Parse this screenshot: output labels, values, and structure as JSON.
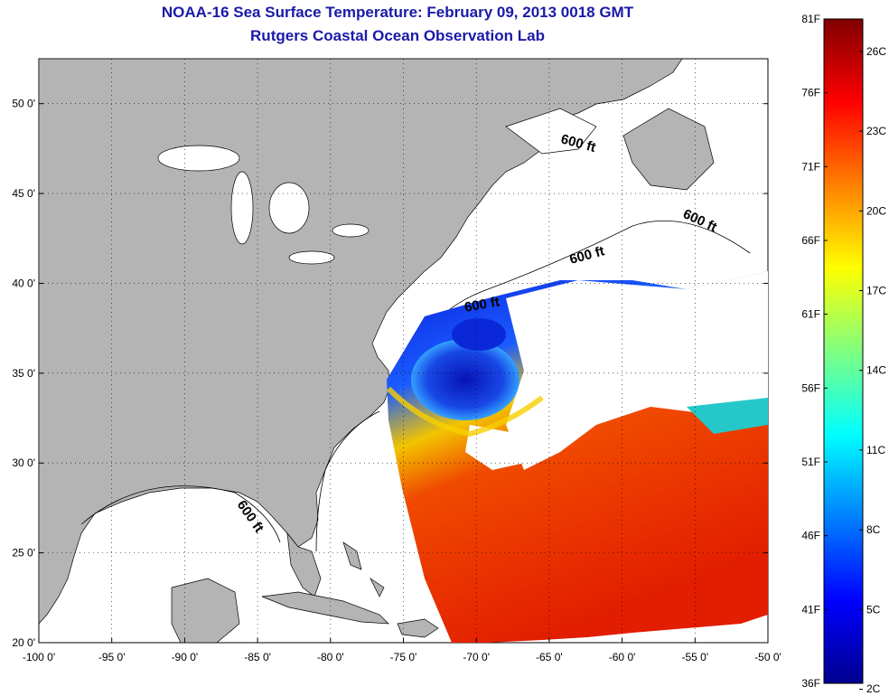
{
  "header": {
    "title": "NOAA-16 Sea Surface Temperature:  February 09, 2013 0018 GMT",
    "subtitle": "Rutgers Coastal Ocean Observation Lab"
  },
  "map": {
    "lon_range": [
      -100,
      -50
    ],
    "lat_range": [
      20,
      52.5
    ],
    "lon_ticks": [
      {
        "value": -100,
        "label": "-100 0'"
      },
      {
        "value": -95,
        "label": "-95 0'"
      },
      {
        "value": -90,
        "label": "-90 0'"
      },
      {
        "value": -85,
        "label": "-85 0'"
      },
      {
        "value": -80,
        "label": "-80 0'"
      },
      {
        "value": -75,
        "label": "-75 0'"
      },
      {
        "value": -70,
        "label": "-70 0'"
      },
      {
        "value": -65,
        "label": "-65 0'"
      },
      {
        "value": -60,
        "label": "-60 0'"
      },
      {
        "value": -55,
        "label": "-55 0'"
      },
      {
        "value": -50,
        "label": "-50 0'"
      }
    ],
    "lat_ticks": [
      {
        "value": 20,
        "label": "20 0'"
      },
      {
        "value": 25,
        "label": "25 0'"
      },
      {
        "value": 30,
        "label": "30 0'"
      },
      {
        "value": 35,
        "label": "35 0'"
      },
      {
        "value": 40,
        "label": "40 0'"
      },
      {
        "value": 45,
        "label": "45 0'"
      },
      {
        "value": 50,
        "label": "50 0'"
      }
    ],
    "isobath_labels": [
      "600 ft",
      "600 ft",
      "600 ft",
      "600 ft",
      "600 ft"
    ],
    "land_color": "#b4b4b4",
    "ocean_color": "#ffffff"
  },
  "colorbar": {
    "colors": [
      "#00008f",
      "#0000ff",
      "#0080ff",
      "#00ffff",
      "#80ff80",
      "#ffff00",
      "#ff8000",
      "#ff0000",
      "#800000"
    ],
    "fahrenheit_labels": [
      {
        "value": 81,
        "label": "81F"
      },
      {
        "value": 76,
        "label": "76F"
      },
      {
        "value": 71,
        "label": "71F"
      },
      {
        "value": 66,
        "label": "66F"
      },
      {
        "value": 61,
        "label": "61F"
      },
      {
        "value": 56,
        "label": "56F"
      },
      {
        "value": 51,
        "label": "51F"
      },
      {
        "value": 46,
        "label": "46F"
      },
      {
        "value": 41,
        "label": "41F"
      },
      {
        "value": 36,
        "label": "36F"
      }
    ],
    "celsius_labels": [
      {
        "value": 26,
        "label": "26C"
      },
      {
        "value": 23,
        "label": "23C"
      },
      {
        "value": 20,
        "label": "20C"
      },
      {
        "value": 17,
        "label": "17C"
      },
      {
        "value": 14,
        "label": "14C"
      },
      {
        "value": 11,
        "label": "11C"
      },
      {
        "value": 8,
        "label": "8C"
      },
      {
        "value": 5,
        "label": "5C"
      },
      {
        "value": 2,
        "label": "2C"
      }
    ]
  }
}
